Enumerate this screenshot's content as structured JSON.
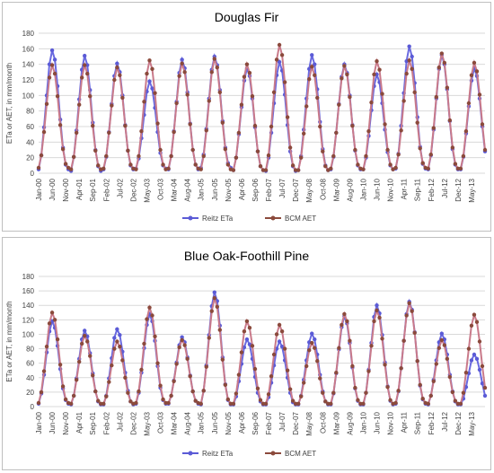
{
  "chart_data": [
    {
      "type": "line",
      "title": "Douglas Fir",
      "ylabel": "ETa or AET, in mm/month",
      "xlabel": "",
      "ylim": [
        0,
        180
      ],
      "yticks": [
        0,
        20,
        40,
        60,
        80,
        100,
        120,
        140,
        160,
        180
      ],
      "grid": true,
      "legend": "bottom-center",
      "x_tick_labels": [
        "Jan-00",
        "Jun-00",
        "Nov-00",
        "Apr-01",
        "Sep-01",
        "Feb-02",
        "Jul-02",
        "Dec-02",
        "May-03",
        "Oct-03",
        "Mar-04",
        "Aug-04",
        "Jan-05",
        "Jun-05",
        "Nov-05",
        "Apr-06",
        "Sep-06",
        "Feb-07",
        "Jul-07",
        "Dec-07",
        "May-08",
        "Oct-08",
        "Mar-09",
        "Aug-09",
        "Jan-10",
        "Jun-10",
        "Nov-10",
        "Apr-11",
        "Sep-11",
        "Feb-12",
        "Jul-12",
        "Dec-12",
        "May-13"
      ],
      "x_start": "2000-01",
      "x_end": "2013-10",
      "series": [
        {
          "name": "Reitz ETa",
          "color": "#5b5bd6",
          "peaks": [
            158,
            151,
            141,
            118,
            146,
            150,
            135,
            143,
            152,
            140,
            127,
            163,
            152,
            135
          ],
          "troughs": [
            5,
            3,
            5,
            6,
            5,
            7,
            4,
            3,
            4,
            5,
            5,
            6,
            5
          ]
        },
        {
          "name": "BCM AET",
          "color": "#8b4a3c",
          "peaks": [
            139,
            139,
            136,
            145,
            141,
            147,
            140,
            165,
            137,
            138,
            144,
            145,
            154,
            142
          ],
          "troughs": [
            7,
            5,
            6,
            5,
            6,
            5,
            4,
            4,
            4,
            6,
            5,
            7,
            6
          ]
        }
      ]
    },
    {
      "type": "line",
      "title": "Blue Oak-Foothill Pine",
      "ylabel": "ETa or AET, in mm/month",
      "xlabel": "",
      "ylim": [
        0,
        180
      ],
      "yticks": [
        0,
        20,
        40,
        60,
        80,
        100,
        120,
        140,
        160,
        180
      ],
      "grid": true,
      "legend": "bottom-center",
      "x_tick_labels": [
        "Jan-00",
        "Jun-00",
        "Nov-00",
        "Apr-01",
        "Sep-01",
        "Feb-02",
        "Jul-02",
        "Dec-02",
        "May-03",
        "Oct-03",
        "Mar-04",
        "Aug-04",
        "Jan-05",
        "Jun-05",
        "Nov-05",
        "Apr-06",
        "Sep-06",
        "Feb-07",
        "Jul-07",
        "Dec-07",
        "May-08",
        "Oct-08",
        "Mar-09",
        "Aug-09",
        "Jan-10",
        "Jun-10",
        "Nov-10",
        "Apr-11",
        "Sep-11",
        "Feb-12",
        "Jul-12",
        "Dec-12",
        "May-13"
      ],
      "x_start": "2000-01",
      "x_end": "2013-10",
      "series": [
        {
          "name": "Reitz ETa",
          "color": "#5b5bd6",
          "peaks": [
            118,
            105,
            107,
            128,
            96,
            158,
            93,
            90,
            101,
            125,
            140,
            145,
            101,
            72
          ],
          "troughs": [
            4,
            3,
            3,
            4,
            4,
            3,
            3,
            3,
            3,
            3,
            3,
            4,
            3
          ]
        },
        {
          "name": "BCM AET",
          "color": "#8b4a3c",
          "peaks": [
            130,
            98,
            90,
            137,
            92,
            150,
            118,
            113,
            88,
            128,
            133,
            143,
            92,
            127
          ],
          "troughs": [
            5,
            4,
            4,
            5,
            5,
            4,
            4,
            4,
            4,
            4,
            4,
            5,
            4
          ]
        }
      ]
    }
  ]
}
